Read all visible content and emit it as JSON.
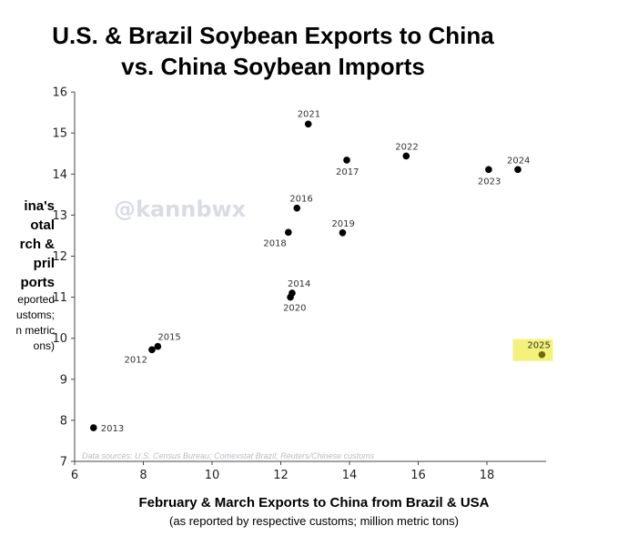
{
  "chart_data": {
    "type": "scatter",
    "title_lines": [
      "U.S. & Brazil Soybean Exports to China",
      "vs. China Soybean Imports"
    ],
    "xlabel": "February & March Exports to China from Brazil & USA",
    "xlabel_sub": "(as reported by respective customs; million metric tons)",
    "ylabel_lines": [
      "ina's",
      "otal",
      "rch &",
      "pril",
      "ports",
      "eported",
      "ustoms;",
      "n metric",
      "ons)"
    ],
    "xlim": [
      6,
      20
    ],
    "ylim": [
      7,
      16
    ],
    "xticks": [
      "6",
      "8",
      "10",
      "12",
      "14",
      "16",
      "18"
    ],
    "yticks": [
      "7",
      "8",
      "9",
      "10",
      "11",
      "12",
      "13",
      "14",
      "15",
      "16"
    ],
    "grid": false,
    "points": [
      {
        "label": "2013",
        "x": 6.55,
        "y": 7.82
      },
      {
        "label": "2012",
        "x": 8.25,
        "y": 9.72
      },
      {
        "label": "2015",
        "x": 8.42,
        "y": 9.8
      },
      {
        "label": "2014",
        "x": 12.33,
        "y": 11.1
      },
      {
        "label": "2020",
        "x": 12.28,
        "y": 11.0
      },
      {
        "label": "2018",
        "x": 12.22,
        "y": 12.58
      },
      {
        "label": "2016",
        "x": 12.47,
        "y": 13.17
      },
      {
        "label": "2021",
        "x": 12.8,
        "y": 15.22
      },
      {
        "label": "2019",
        "x": 13.8,
        "y": 12.57
      },
      {
        "label": "2017",
        "x": 13.92,
        "y": 14.34
      },
      {
        "label": "2022",
        "x": 15.65,
        "y": 14.44
      },
      {
        "label": "2023",
        "x": 18.05,
        "y": 14.11
      },
      {
        "label": "2024",
        "x": 18.9,
        "y": 14.11
      },
      {
        "label": "2025",
        "x": 19.6,
        "y": 9.6,
        "highlight": true
      }
    ],
    "watermark": "@kannbwx",
    "source": "Data sources: U.S. Census Bureau; Comexstat Brazil; Reuters/Chinese customs"
  },
  "colors": {
    "point": "#000000",
    "highlight_point": "#6b6a12",
    "highlight_fill": "#f4f27a",
    "axis": "#444444"
  }
}
